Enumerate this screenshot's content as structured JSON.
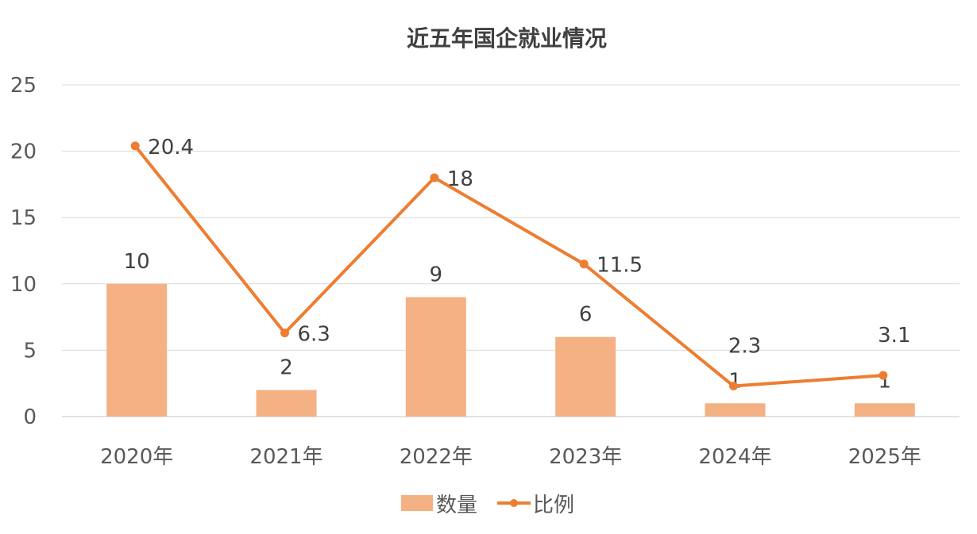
{
  "chart_data": {
    "type": "bar",
    "title": "近五年国企就业情况",
    "categories": [
      "2020年",
      "2021年",
      "2022年",
      "2023年",
      "2024年",
      "2025年"
    ],
    "series": [
      {
        "name": "数量",
        "type": "bar",
        "values": [
          10,
          2,
          9,
          6,
          1,
          1
        ],
        "color": "#F4B183"
      },
      {
        "name": "比例",
        "type": "line",
        "values": [
          20.4,
          6.3,
          18,
          11.5,
          2.3,
          3.1
        ],
        "color": "#ED7D31"
      }
    ],
    "ylim": [
      0,
      25
    ],
    "yticks": [
      "0",
      "5",
      "10",
      "15",
      "20",
      "25"
    ],
    "grid": true,
    "legend_position": "bottom",
    "gridline_color": "#D9D9D9"
  }
}
